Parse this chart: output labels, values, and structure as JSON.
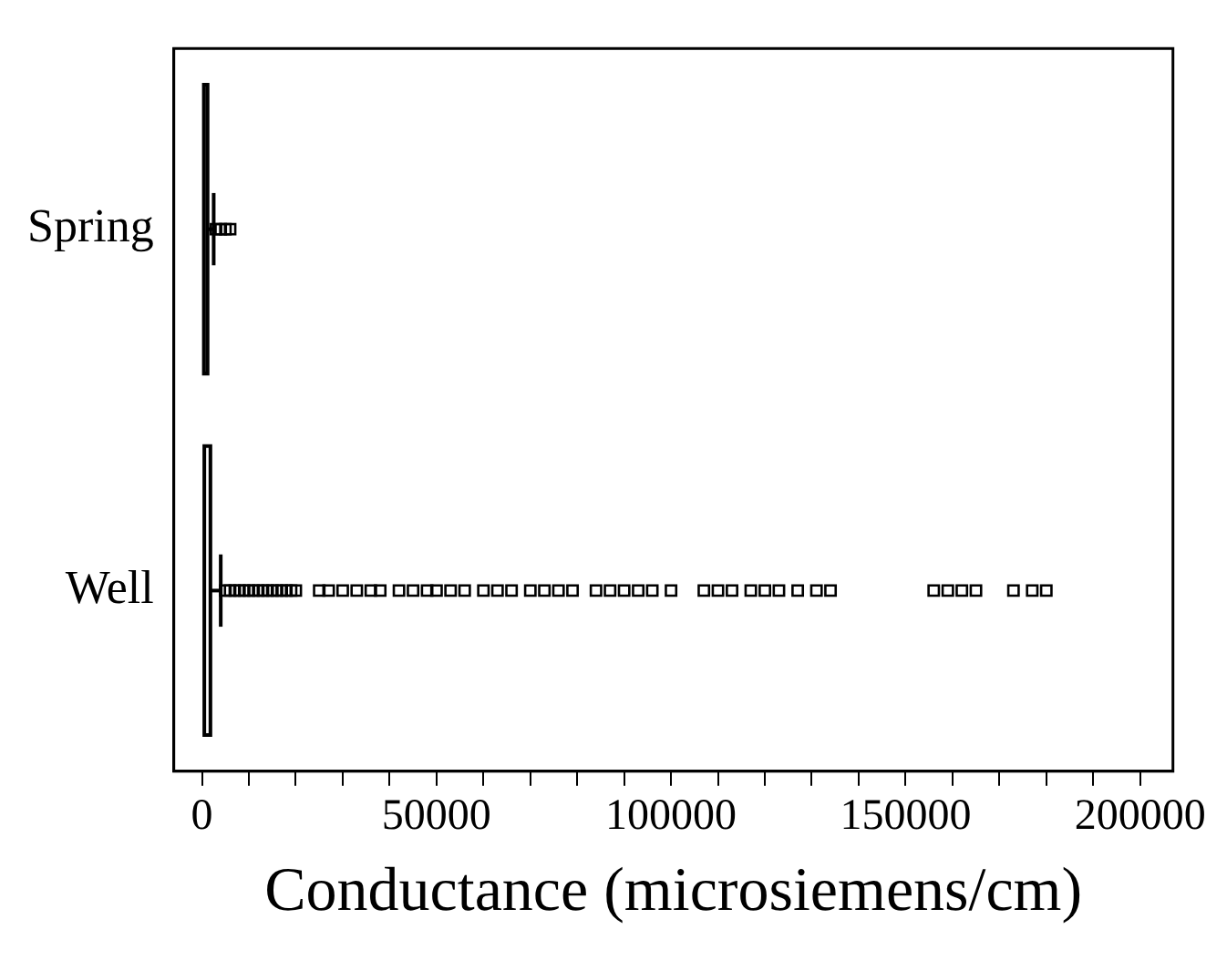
{
  "chart_data": {
    "type": "box",
    "orientation": "horizontal",
    "xlabel": "Conductance (microsiemens/cm)",
    "categories": [
      "Spring",
      "Well"
    ],
    "color": "#000000",
    "marker": "square",
    "grid": false,
    "legend": false,
    "boxes": [
      {
        "q1": 400,
        "q3": 1200,
        "high": 2500,
        "outliers": [
          3000,
          4000,
          5000,
          6000
        ]
      },
      {
        "q1": 500,
        "q3": 1800,
        "high": 4000,
        "outliers": [
          5000,
          6000,
          7000,
          8000,
          9000,
          10000,
          11000,
          12000,
          13000,
          14000,
          15000,
          16000,
          17000,
          18000,
          19000,
          20000,
          25000,
          27000,
          30000,
          33000,
          36000,
          38000,
          42000,
          45000,
          48000,
          50000,
          53000,
          56000,
          60000,
          63000,
          66000,
          70000,
          73000,
          76000,
          79000,
          84000,
          87000,
          90000,
          93000,
          96000,
          100000,
          107000,
          110000,
          113000,
          117000,
          120000,
          123000,
          127000,
          131000,
          134000,
          156000,
          159000,
          162000,
          165000,
          173000,
          177000,
          180000
        ]
      }
    ],
    "xlim": [
      -6000,
      207000
    ],
    "xticks": [
      0,
      {
        "value": 10000,
        "label": null
      },
      {
        "value": 20000,
        "label": null
      },
      {
        "value": 30000,
        "label": null
      },
      {
        "value": 40000,
        "label": null
      },
      50000,
      {
        "value": 60000,
        "label": null
      },
      {
        "value": 70000,
        "label": null
      },
      {
        "value": 80000,
        "label": null
      },
      {
        "value": 90000,
        "label": null
      },
      100000,
      {
        "value": 110000,
        "label": null
      },
      {
        "value": 120000,
        "label": null
      },
      {
        "value": 130000,
        "label": null
      },
      {
        "value": 140000,
        "label": null
      },
      150000,
      {
        "value": 160000,
        "label": null
      },
      {
        "value": 170000,
        "label": null
      },
      {
        "value": 180000,
        "label": null
      },
      {
        "value": 190000,
        "label": null
      },
      200000
    ]
  }
}
